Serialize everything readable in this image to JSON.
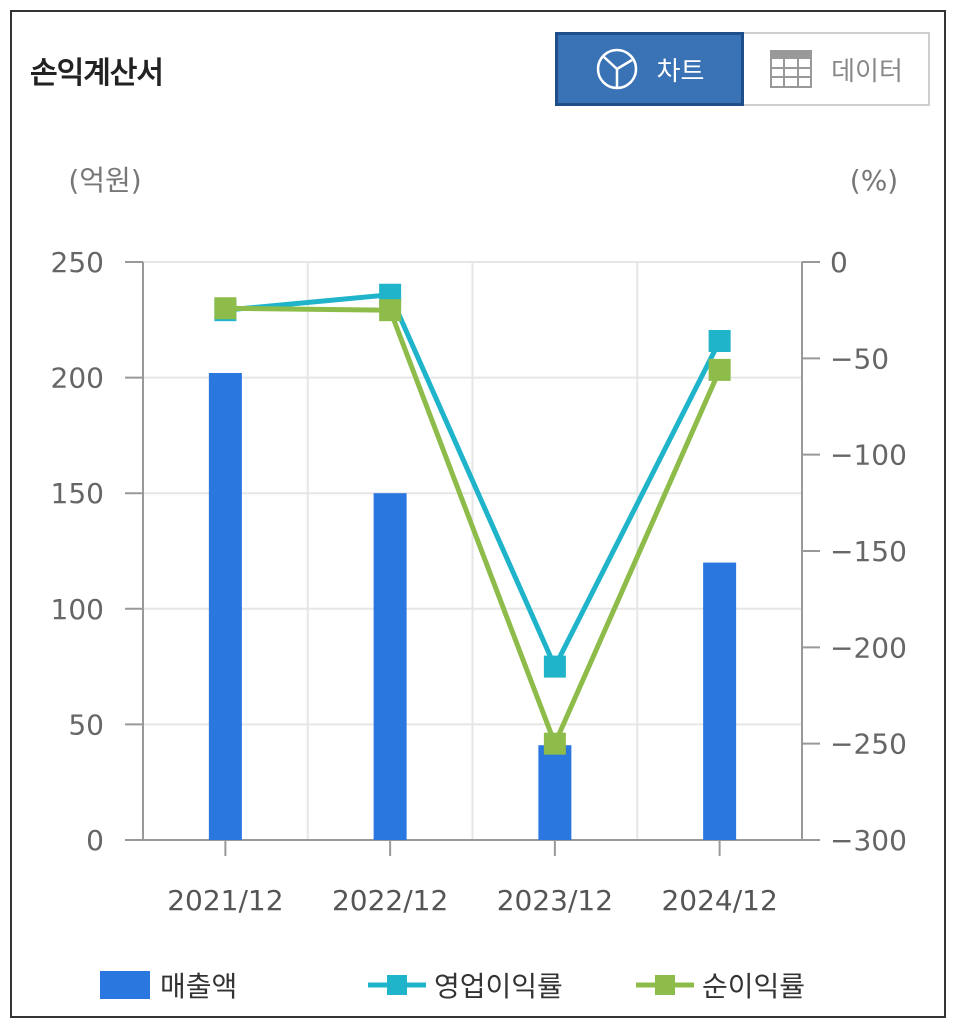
{
  "header": {
    "title": "손익계산서",
    "chart_button_label": "차트",
    "data_button_label": "데이터",
    "chart_icon": "pie-chart-icon",
    "data_icon": "table-grid-icon"
  },
  "chart_data": {
    "type": "bar",
    "categories": [
      "2021/12",
      "2022/12",
      "2023/12",
      "2024/12"
    ],
    "y_left": {
      "unit_label": "(억원)",
      "min": 0,
      "max": 250,
      "ticks": [
        0,
        50,
        100,
        150,
        200,
        250
      ]
    },
    "y_right": {
      "unit_label": "(%)",
      "min": -300,
      "max": 0,
      "ticks": [
        -300,
        -250,
        -200,
        -150,
        -100,
        -50,
        0
      ]
    },
    "series": [
      {
        "name": "매출액",
        "type": "bar",
        "axis": "left",
        "color": "#2a77e0",
        "values": [
          202,
          150,
          41,
          120
        ]
      },
      {
        "name": "영업이익률",
        "type": "line",
        "axis": "right",
        "color": "#1fb4c9",
        "values": [
          -25,
          -17,
          -210,
          -41
        ]
      },
      {
        "name": "순이익률",
        "type": "line",
        "axis": "right",
        "color": "#8ebc4a",
        "values": [
          -24,
          -25,
          -250,
          -56
        ]
      }
    ],
    "grid": true,
    "legend_position": "bottom"
  }
}
